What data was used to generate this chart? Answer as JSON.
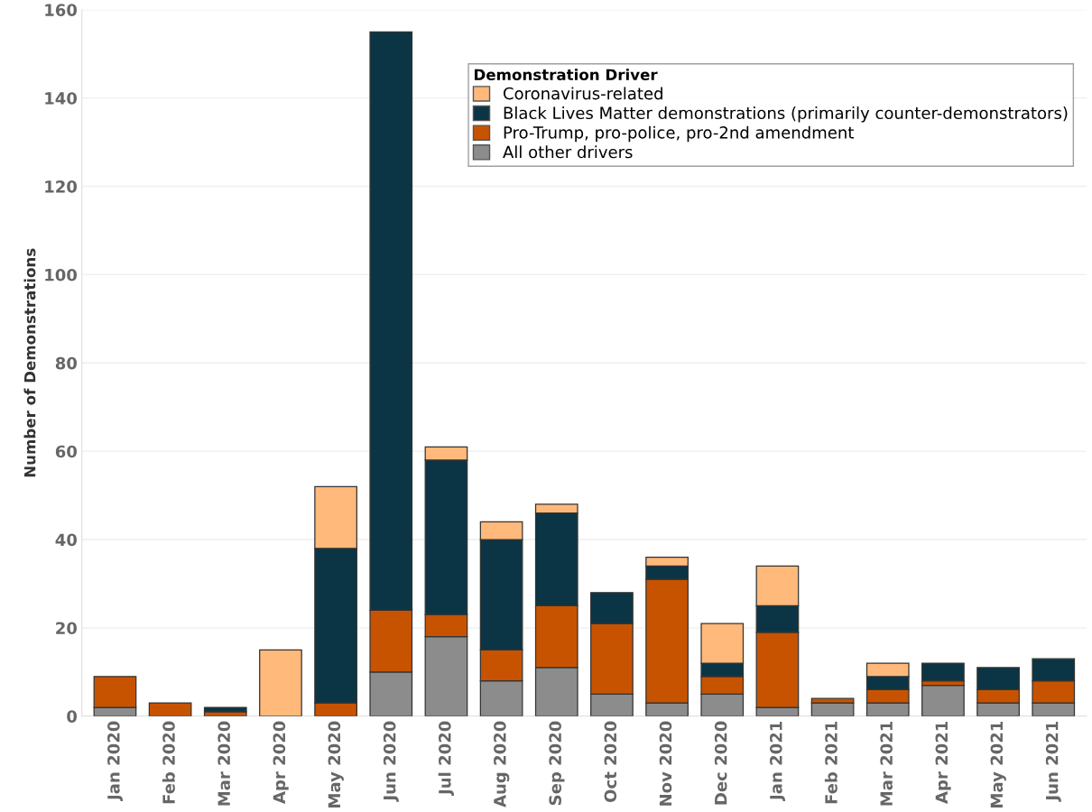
{
  "chart_data": {
    "type": "bar",
    "stacked": true,
    "ylabel": "Number of Demonstrations",
    "legend_title": "Demonstration Driver",
    "categories": [
      "Jan 2020",
      "Feb 2020",
      "Mar 2020",
      "Apr 2020",
      "May 2020",
      "Jun 2020",
      "Jul 2020",
      "Aug 2020",
      "Sep 2020",
      "Oct 2020",
      "Nov 2020",
      "Dec 2020",
      "Jan 2021",
      "Feb 2021",
      "Mar 2021",
      "Apr 2021",
      "May 2021",
      "Jun 2021"
    ],
    "series": [
      {
        "name": "All other drivers",
        "color": "#8c8c8c",
        "values": [
          2,
          0,
          0,
          0,
          0,
          10,
          18,
          8,
          11,
          5,
          3,
          5,
          2,
          3,
          3,
          7,
          3,
          3
        ]
      },
      {
        "name": "Pro-Trump, pro-police, pro-2nd amendment",
        "color": "#c75300",
        "values": [
          7,
          3,
          1,
          0,
          3,
          14,
          5,
          7,
          14,
          16,
          28,
          4,
          17,
          1,
          3,
          1,
          3,
          5
        ]
      },
      {
        "name": "Black Lives Matter demonstrations (primarily counter-demonstrators)",
        "color": "#0b3545",
        "values": [
          0,
          0,
          1,
          0,
          35,
          131,
          35,
          25,
          21,
          7,
          3,
          3,
          6,
          0,
          3,
          4,
          5,
          5
        ]
      },
      {
        "name": "Coronavirus-related",
        "color": "#ffb97a",
        "values": [
          0,
          0,
          0,
          15,
          14,
          0,
          3,
          4,
          2,
          0,
          2,
          9,
          9,
          0,
          3,
          0,
          0,
          0
        ]
      }
    ],
    "ylim": [
      0,
      160
    ],
    "yticks": [
      0,
      20,
      40,
      60,
      80,
      100,
      120,
      140,
      160
    ],
    "grid": "y",
    "legend": "top right"
  }
}
